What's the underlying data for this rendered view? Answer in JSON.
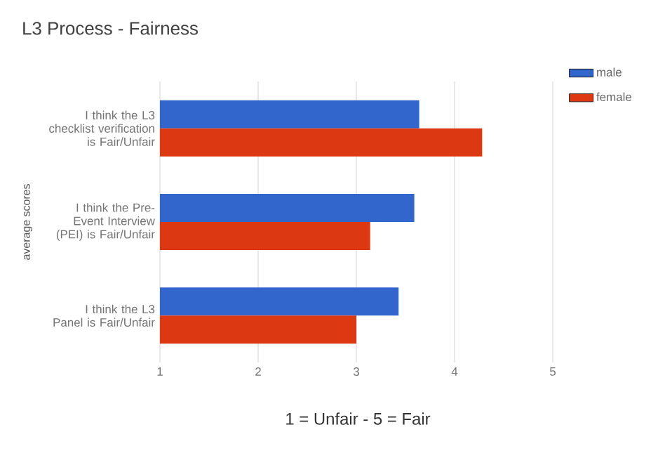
{
  "chart_data": {
    "type": "bar",
    "orientation": "horizontal",
    "title": "L3 Process - Fairness",
    "xlabel": "1 = Unfair - 5 = Fair",
    "ylabel": "average scores",
    "categories": [
      "I think the L3 checklist verification is Fair/Unfair",
      "I think the Pre-Event Interview (PEI) is Fair/Unfair",
      "I think the L3 Panel is Fair/Unfair"
    ],
    "series": [
      {
        "name": "male",
        "color": "#3366cc",
        "values": [
          3.64,
          3.59,
          3.43
        ]
      },
      {
        "name": "female",
        "color": "#dc3912",
        "values": [
          4.28,
          3.14,
          3.0
        ]
      }
    ],
    "xlim": [
      1,
      5
    ],
    "xticks": [
      1,
      2,
      3,
      4,
      5
    ],
    "grid": "x",
    "legend": "top right"
  }
}
